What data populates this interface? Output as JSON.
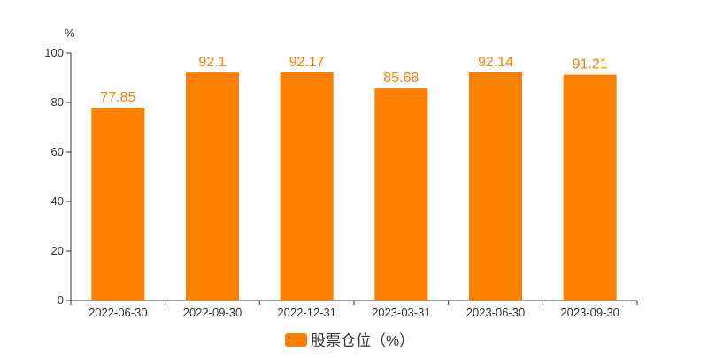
{
  "chart_data": {
    "type": "bar",
    "categories": [
      "2022-06-30",
      "2022-09-30",
      "2022-12-31",
      "2023-03-31",
      "2023-06-30",
      "2023-09-30"
    ],
    "series": [
      {
        "name": "股票仓位（%）",
        "values": [
          77.85,
          92.1,
          92.17,
          85.68,
          92.14,
          91.21
        ]
      }
    ],
    "data_labels": [
      "77.85",
      "92.1",
      "92.17",
      "85.68",
      "92.14",
      "91.21"
    ],
    "y_unit": "%",
    "ylim": [
      0,
      100
    ],
    "yticks": [
      0,
      20,
      40,
      60,
      80,
      100
    ],
    "grid": false,
    "legend_position": "bottom-center",
    "colors": {
      "bar": "#ff7f00",
      "axis": "#333333"
    }
  }
}
